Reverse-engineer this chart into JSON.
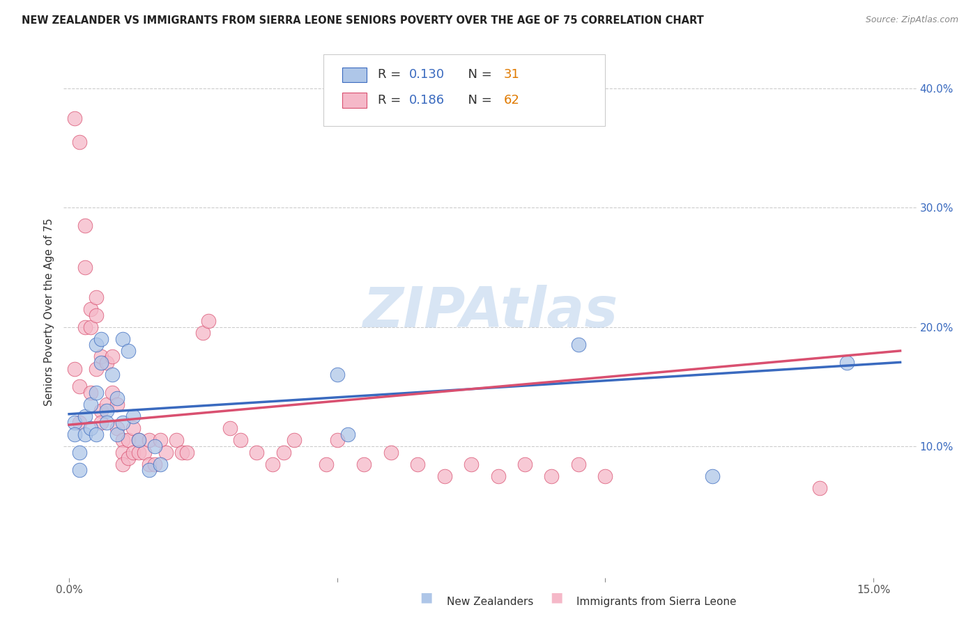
{
  "title": "NEW ZEALANDER VS IMMIGRANTS FROM SIERRA LEONE SENIORS POVERTY OVER THE AGE OF 75 CORRELATION CHART",
  "source": "Source: ZipAtlas.com",
  "ylabel": "Seniors Poverty Over the Age of 75",
  "xlim": [
    -0.001,
    0.158
  ],
  "ylim": [
    -0.01,
    0.435
  ],
  "legend_r1": "0.130",
  "legend_n1": "31",
  "legend_r2": "0.186",
  "legend_n2": "62",
  "color_blue": "#aec6e8",
  "color_pink": "#f5b8c8",
  "line_color_blue": "#3a6abf",
  "line_color_pink": "#d95070",
  "watermark": "ZIPAtlas",
  "nz_x": [
    0.001,
    0.001,
    0.002,
    0.002,
    0.003,
    0.003,
    0.004,
    0.004,
    0.005,
    0.005,
    0.005,
    0.006,
    0.006,
    0.007,
    0.007,
    0.008,
    0.009,
    0.009,
    0.01,
    0.01,
    0.011,
    0.012,
    0.013,
    0.015,
    0.016,
    0.017,
    0.05,
    0.052,
    0.095,
    0.12,
    0.145
  ],
  "nz_y": [
    0.12,
    0.11,
    0.095,
    0.08,
    0.125,
    0.11,
    0.135,
    0.115,
    0.185,
    0.145,
    0.11,
    0.19,
    0.17,
    0.13,
    0.12,
    0.16,
    0.14,
    0.11,
    0.19,
    0.12,
    0.18,
    0.125,
    0.105,
    0.08,
    0.1,
    0.085,
    0.16,
    0.11,
    0.185,
    0.075,
    0.17
  ],
  "sl_x": [
    0.001,
    0.001,
    0.002,
    0.002,
    0.002,
    0.003,
    0.003,
    0.003,
    0.004,
    0.004,
    0.004,
    0.005,
    0.005,
    0.005,
    0.006,
    0.006,
    0.006,
    0.007,
    0.007,
    0.008,
    0.008,
    0.009,
    0.009,
    0.01,
    0.01,
    0.01,
    0.011,
    0.011,
    0.012,
    0.012,
    0.013,
    0.013,
    0.014,
    0.015,
    0.015,
    0.016,
    0.017,
    0.018,
    0.02,
    0.021,
    0.022,
    0.025,
    0.026,
    0.03,
    0.032,
    0.035,
    0.038,
    0.04,
    0.042,
    0.048,
    0.05,
    0.055,
    0.06,
    0.065,
    0.07,
    0.075,
    0.08,
    0.085,
    0.09,
    0.095,
    0.1,
    0.14
  ],
  "sl_y": [
    0.375,
    0.165,
    0.355,
    0.15,
    0.12,
    0.285,
    0.25,
    0.2,
    0.215,
    0.2,
    0.145,
    0.225,
    0.21,
    0.165,
    0.175,
    0.13,
    0.12,
    0.17,
    0.135,
    0.175,
    0.145,
    0.135,
    0.115,
    0.105,
    0.095,
    0.085,
    0.105,
    0.09,
    0.115,
    0.095,
    0.105,
    0.095,
    0.095,
    0.105,
    0.085,
    0.085,
    0.105,
    0.095,
    0.105,
    0.095,
    0.095,
    0.195,
    0.205,
    0.115,
    0.105,
    0.095,
    0.085,
    0.095,
    0.105,
    0.085,
    0.105,
    0.085,
    0.095,
    0.085,
    0.075,
    0.085,
    0.075,
    0.085,
    0.075,
    0.085,
    0.075,
    0.065
  ]
}
